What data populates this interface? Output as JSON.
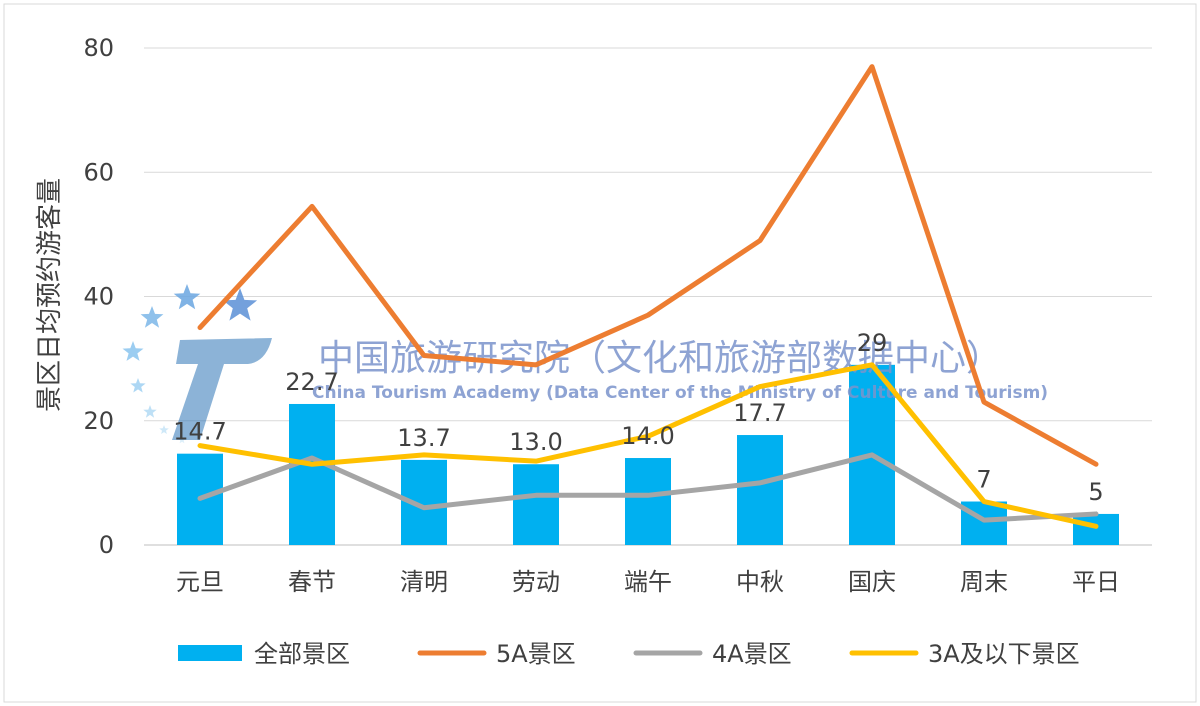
{
  "chart_data": {
    "type": "bar+line",
    "ylabel": "景区日均预约游客量",
    "ylim": [
      0,
      80
    ],
    "yticks": [
      "0",
      "20",
      "40",
      "60",
      "80"
    ],
    "grid": true,
    "legend_position": "bottom",
    "categories": [
      "元旦",
      "春节",
      "清明",
      "劳动",
      "端午",
      "中秋",
      "国庆",
      "周末",
      "平日"
    ],
    "bar_series": {
      "name": "全部景区",
      "color": "#00b0f0",
      "values": [
        14.7,
        22.7,
        13.7,
        13.0,
        14.0,
        17.7,
        29,
        7,
        5
      ],
      "labels": [
        "14.7",
        "22.7",
        "13.7",
        "13.0",
        "14.0",
        "17.7",
        "29",
        "7",
        "5"
      ]
    },
    "line_series": [
      {
        "name": "5A景区",
        "color": "#ed7d31",
        "values": [
          35,
          54.5,
          30.5,
          29,
          37,
          49,
          77,
          23,
          13
        ]
      },
      {
        "name": "4A景区",
        "color": "#a5a5a5",
        "values": [
          7.5,
          14,
          6,
          8,
          8,
          10,
          14.5,
          4,
          5
        ]
      },
      {
        "name": "3A及以下景区",
        "color": "#ffc000",
        "values": [
          16,
          13,
          14.5,
          13.5,
          17.5,
          25.5,
          29,
          7,
          3
        ]
      }
    ]
  },
  "watermark": {
    "title": "中国旅游研究院（文化和旅游部数据中心）",
    "subtitle": "China Tourism Academy (Data Center of the Ministry of Culture and Tourism)",
    "logo_letter": "T"
  }
}
